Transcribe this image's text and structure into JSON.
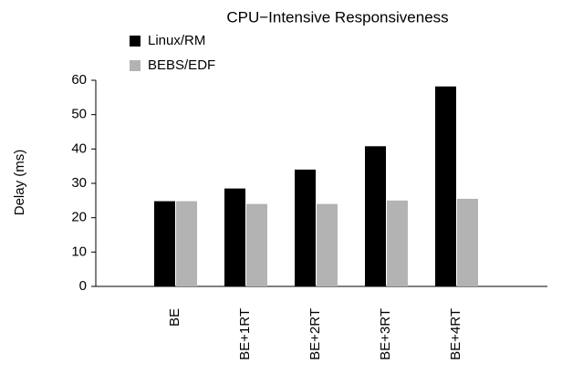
{
  "chart_data": {
    "type": "bar",
    "title": "CPU−Intensive Responsiveness",
    "y_label": "Delay (ms)",
    "categories": [
      "BE",
      "BE+1RT",
      "BE+2RT",
      "BE+3RT",
      "BE+4RT"
    ],
    "series": [
      {
        "name": "Linux/RM",
        "color": "#000000",
        "values": [
          24.8,
          28.5,
          34,
          40.8,
          58.2
        ]
      },
      {
        "name": "BEBS/EDF",
        "color": "#b3b3b3",
        "values": [
          24.8,
          24,
          24,
          25,
          25.5
        ]
      }
    ],
    "ylim": [
      0,
      60
    ],
    "yticks": [
      0,
      10,
      20,
      30,
      40,
      50,
      60
    ],
    "grid": false,
    "legend": "top-left"
  }
}
